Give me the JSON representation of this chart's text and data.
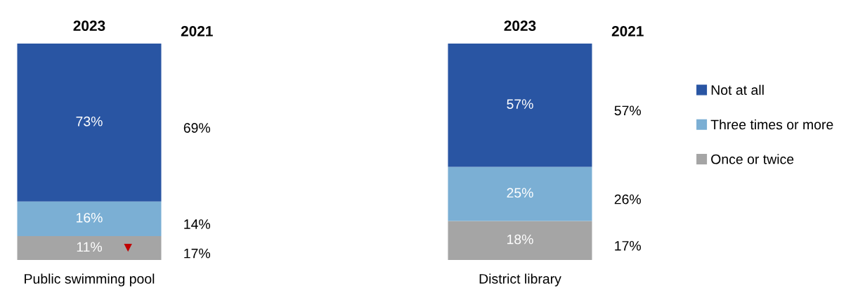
{
  "chart_data": {
    "type": "bar",
    "stacked": true,
    "categories": [
      "Public swimming pool",
      "District library"
    ],
    "ylim": [
      0,
      100
    ],
    "tick_labels": "x",
    "legend": "right",
    "series": [
      {
        "name": "Once or twice",
        "color": "#a5a5a5",
        "values": [
          11,
          18
        ],
        "value_labels": [
          "11%",
          "18%"
        ]
      },
      {
        "name": "Three times or more",
        "color": "#7bafd4",
        "values": [
          16,
          25
        ],
        "value_labels": [
          "16%",
          "25%"
        ]
      },
      {
        "name": "Not at all",
        "color": "#2955a3",
        "values": [
          73,
          57
        ],
        "value_labels": [
          "73%",
          "57%"
        ]
      }
    ],
    "annotations": [
      "2023",
      "2021",
      "69%",
      "14%",
      "17%",
      "2023",
      "2021",
      "57%",
      "26%",
      "17%",
      "▼"
    ]
  }
}
